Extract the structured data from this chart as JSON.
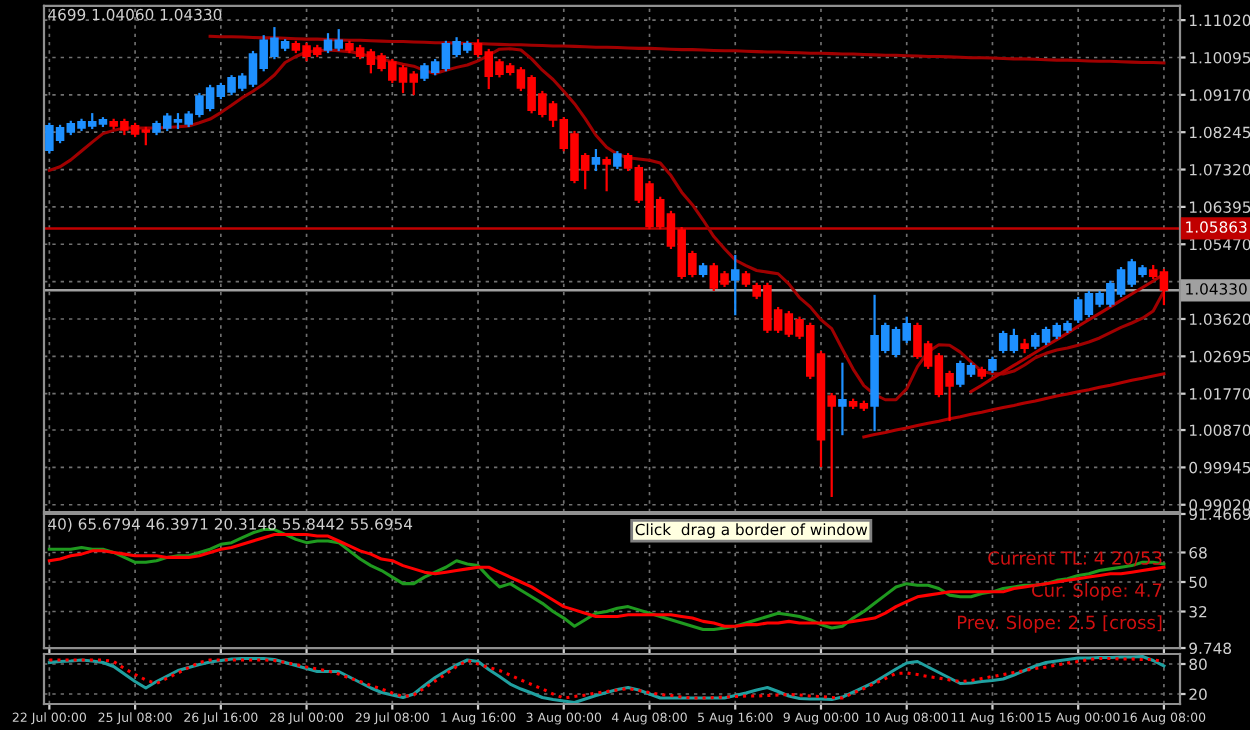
{
  "chart_data": [
    {
      "type": "candlestick",
      "categories": [
        null,
        null,
        null,
        null,
        null,
        null,
        null,
        null,
        null,
        null,
        null,
        null,
        null,
        null,
        null,
        null,
        null,
        null,
        null,
        null,
        null,
        null,
        null,
        null,
        null,
        null,
        null,
        null,
        null,
        null,
        null,
        null,
        null,
        null,
        null,
        null,
        null,
        null,
        null,
        null,
        null,
        null,
        null,
        null,
        null,
        null,
        null,
        null,
        null,
        null,
        null,
        null,
        null,
        null,
        null,
        null,
        null,
        null,
        null,
        null,
        null,
        null,
        null,
        null,
        null,
        null,
        null,
        null,
        null,
        null,
        null,
        null,
        null,
        null,
        null,
        null,
        null,
        null,
        null,
        null,
        null,
        null,
        null,
        null,
        null,
        null,
        null,
        null,
        null,
        null,
        null,
        null,
        null,
        null,
        null,
        null,
        null,
        null,
        null,
        null,
        null,
        null,
        null,
        null,
        null
      ],
      "ylim": [
        0.9884,
        1.1137
      ],
      "yticks": [
        {
          "value": 1.1102,
          "label": "1.11020"
        },
        {
          "value": 1.10095,
          "label": "1.10095"
        },
        {
          "value": 1.0917,
          "label": "1.09170"
        },
        {
          "value": 1.08245,
          "label": "1.08245"
        },
        {
          "value": 1.0732,
          "label": "1.07320"
        },
        {
          "value": 1.06395,
          "label": "1.06395"
        },
        {
          "value": 1.0547,
          "label": "1.05470"
        },
        {
          "value": 1.04545,
          "label": null
        },
        {
          "value": 1.0362,
          "label": "1.03620"
        },
        {
          "value": 1.02695,
          "label": "1.02695"
        },
        {
          "value": 1.0177,
          "label": "1.01770"
        },
        {
          "value": 1.0087,
          "label": "1.00870"
        },
        {
          "value": 0.99945,
          "label": "0.99945"
        },
        {
          "value": 0.9902,
          "label": "0.99020"
        }
      ],
      "tick_labels": "y",
      "grid": true,
      "ref_lines": [
        {
          "axis": "y",
          "value": 1.05863,
          "label": "1.05863",
          "color": "#c00000"
        },
        {
          "axis": "y",
          "value": 1.0433,
          "label": "1.04330",
          "color": "#a0a0a0"
        }
      ],
      "annotations": [
        "4699 1.04060 1.04330"
      ],
      "series": [
        {
          "type": "line",
          "color": "#a00000",
          "values": [
            1.073,
            1.0739,
            1.0756,
            1.0778,
            1.08,
            1.0821,
            1.0829,
            1.0835,
            1.0835,
            1.0835,
            1.0835,
            1.0836,
            1.0838,
            1.084,
            1.0848,
            1.0857,
            1.0873,
            1.0891,
            1.091,
            1.0926,
            1.0944,
            1.0966,
            1.0997,
            1.1012,
            1.1023,
            1.1026,
            1.1028,
            1.1026,
            1.1024,
            1.1019,
            1.1012,
            1.1005,
            1.0999,
            1.0993,
            1.0988,
            1.0977,
            1.097,
            1.0978,
            1.0985,
            1.0991,
            1.1001,
            1.1015,
            1.103,
            1.1031,
            1.1028,
            1.1006,
            1.0978,
            1.0955,
            1.0926,
            1.0895,
            1.0858,
            1.0817,
            1.0787,
            1.077,
            1.0761,
            1.0758,
            1.0755,
            1.0748,
            1.0717,
            1.0676,
            1.0645,
            1.0607,
            1.0566,
            1.0536,
            1.0508,
            1.0494,
            1.0482,
            1.0478,
            1.0474,
            1.0449,
            1.0415,
            1.0392,
            1.036,
            1.0338,
            1.0287,
            1.0238,
            1.0197,
            1.0175,
            1.0162,
            1.0162,
            1.0189,
            1.0244,
            1.0281,
            1.0298,
            1.0297,
            1.028,
            1.0256,
            1.0232,
            1.0227,
            1.0226,
            1.0233,
            1.0248,
            1.0266,
            1.0277,
            1.0285,
            1.029,
            1.0297,
            1.0305,
            1.0315,
            1.0328,
            1.0341,
            1.0352,
            1.0364,
            1.0382,
            1.0431
          ]
        },
        {
          "type": "line",
          "color": "#a00000",
          "values": [
            null,
            null,
            null,
            null,
            null,
            null,
            null,
            null,
            null,
            null,
            null,
            null,
            null,
            null,
            null,
            1.1062,
            1.1061,
            1.1061,
            1.106,
            1.1059,
            1.1058,
            1.1058,
            1.1057,
            1.1056,
            1.1055,
            1.1055,
            1.1054,
            1.1053,
            1.1052,
            1.1052,
            1.1051,
            1.105,
            1.1049,
            1.1049,
            1.1048,
            1.1047,
            1.1046,
            1.1046,
            1.1045,
            1.1044,
            1.1044,
            1.1043,
            1.1042,
            1.1041,
            1.1041,
            1.104,
            1.1039,
            1.1038,
            1.1038,
            1.1037,
            1.1036,
            1.1035,
            1.1035,
            1.1034,
            1.1033,
            1.1032,
            1.1032,
            1.1031,
            1.103,
            1.1029,
            1.1029,
            1.1028,
            1.1027,
            1.1026,
            1.1026,
            1.1025,
            1.1024,
            1.1023,
            1.1023,
            1.1022,
            1.1021,
            1.102,
            1.102,
            1.1019,
            1.1018,
            1.1018,
            1.1017,
            1.1016,
            1.1015,
            1.1015,
            1.1014,
            1.1013,
            1.1012,
            1.1012,
            1.1011,
            1.101,
            1.1009,
            1.1009,
            1.1008,
            1.1007,
            1.1006,
            1.1006,
            1.1005,
            1.1004,
            1.1003,
            1.1003,
            1.1002,
            1.1001,
            1.1,
            1.1,
            1.0999,
            1.0998,
            1.0997,
            1.0997,
            1.0996
          ]
        },
        {
          "type": "line",
          "color": "#b00000",
          "values": [
            null,
            null,
            null,
            null,
            null,
            null,
            null,
            null,
            null,
            null,
            null,
            null,
            null,
            null,
            null,
            null,
            null,
            null,
            null,
            null,
            null,
            null,
            null,
            null,
            null,
            null,
            null,
            null,
            null,
            null,
            null,
            null,
            null,
            null,
            null,
            null,
            null,
            null,
            null,
            null,
            null,
            null,
            null,
            null,
            null,
            null,
            null,
            null,
            null,
            null,
            null,
            null,
            null,
            null,
            null,
            null,
            null,
            null,
            null,
            null,
            null,
            null,
            null,
            null,
            null,
            null,
            null,
            null,
            null,
            null,
            null,
            null,
            null,
            null,
            null,
            null,
            1.007,
            1.0076,
            1.0081,
            1.0087,
            1.0092,
            1.0098,
            1.0104,
            1.0109,
            1.0115,
            1.012,
            1.0126,
            1.0131,
            1.0137,
            1.0143,
            1.0148,
            1.0154,
            1.0159,
            1.0165,
            1.0171,
            1.0176,
            1.0182,
            1.0187,
            1.0193,
            1.0198,
            1.0204,
            1.021,
            1.0215,
            1.0221,
            1.0226
          ]
        },
        {
          "type": "line",
          "color": "#b00000",
          "values": [
            null,
            null,
            null,
            null,
            null,
            null,
            null,
            null,
            null,
            null,
            null,
            null,
            null,
            null,
            null,
            null,
            null,
            null,
            null,
            null,
            null,
            null,
            null,
            null,
            null,
            null,
            null,
            null,
            null,
            null,
            null,
            null,
            null,
            null,
            null,
            null,
            null,
            null,
            null,
            null,
            null,
            null,
            null,
            null,
            null,
            null,
            null,
            null,
            null,
            null,
            null,
            null,
            null,
            null,
            null,
            null,
            null,
            null,
            null,
            null,
            null,
            null,
            null,
            null,
            null,
            null,
            null,
            null,
            null,
            null,
            null,
            null,
            null,
            null,
            null,
            null,
            null,
            null,
            null,
            null,
            null,
            null,
            null,
            null,
            null,
            null,
            1.0182,
            1.0198,
            1.0215,
            1.0231,
            1.0247,
            1.0263,
            1.0279,
            1.0295,
            1.0311,
            1.0327,
            1.0344,
            1.036,
            1.0376,
            1.0392,
            1.0408,
            1.0424,
            1.044,
            1.0456,
            1.0473
          ]
        },
        {
          "type": "candlestick",
          "colors": [
            "#1e90ff",
            "#1e90ff",
            "#1e90ff",
            "#1e90ff",
            "#1e90ff",
            "#1e90ff",
            "#ff0000",
            "#ff0000",
            "#ff0000",
            "#ff0000",
            "#1e90ff",
            "#1e90ff",
            "#1e90ff",
            "#1e90ff",
            "#1e90ff",
            "#1e90ff",
            "#1e90ff",
            "#1e90ff",
            "#1e90ff",
            "#1e90ff",
            "#1e90ff",
            "#1e90ff",
            "#1e90ff",
            "#ff0000",
            "#ff0000",
            "#ff0000",
            "#1e90ff",
            "#1e90ff",
            "#ff0000",
            "#ff0000",
            "#ff0000",
            "#ff0000",
            "#ff0000",
            "#ff0000",
            "#ff0000",
            "#1e90ff",
            "#1e90ff",
            "#1e90ff",
            "#1e90ff",
            "#1e90ff",
            "#ff0000",
            "#ff0000",
            "#ff0000",
            "#ff0000",
            "#ff0000",
            "#ff0000",
            "#ff0000",
            "#ff0000",
            "#ff0000",
            "#ff0000",
            "#ff0000",
            "#1e90ff",
            "#ff0000",
            "#1e90ff",
            "#ff0000",
            "#ff0000",
            "#ff0000",
            "#ff0000",
            "#ff0000",
            "#ff0000",
            "#ff0000",
            "#1e90ff",
            "#ff0000",
            "#ff0000",
            "#1e90ff",
            "#ff0000",
            "#ff0000",
            "#ff0000",
            "#ff0000",
            "#ff0000",
            "#ff0000",
            "#ff0000",
            "#ff0000",
            "#ff0000",
            "#1e90ff",
            "#ff0000",
            "#ff0000",
            "#1e90ff",
            "#1e90ff",
            "#1e90ff",
            "#1e90ff",
            "#ff0000",
            "#ff0000",
            "#ff0000",
            "#ff0000",
            "#1e90ff",
            "#1e90ff",
            "#ff0000",
            "#1e90ff",
            "#1e90ff",
            "#1e90ff",
            "#ff0000",
            "#1e90ff",
            "#1e90ff",
            "#1e90ff",
            "#1e90ff",
            "#1e90ff",
            "#1e90ff",
            "#1e90ff",
            "#1e90ff",
            "#1e90ff",
            "#1e90ff",
            "#1e90ff",
            "#ff0000",
            "#ff0000"
          ],
          "ohlc": [
            [
              1.078,
              1.0845,
              1.0775,
              1.084
            ],
            [
              1.0805,
              1.084,
              1.08,
              1.0835
            ],
            [
              1.0825,
              1.085,
              1.082,
              1.0845
            ],
            [
              1.0835,
              1.0855,
              1.083,
              1.085
            ],
            [
              1.084,
              1.0869,
              1.0835,
              1.085
            ],
            [
              1.0845,
              1.0859,
              1.084,
              1.0855
            ],
            [
              1.085,
              1.0855,
              1.0835,
              1.084
            ],
            [
              1.085,
              1.0855,
              1.082,
              1.083
            ],
            [
              1.084,
              1.0845,
              1.0815,
              1.082
            ],
            [
              1.083,
              1.0835,
              1.0795,
              1.0825
            ],
            [
              1.0825,
              1.085,
              1.082,
              1.0845
            ],
            [
              1.0835,
              1.0869,
              1.083,
              1.0864
            ],
            [
              1.085,
              1.0869,
              1.0835,
              1.0855
            ],
            [
              1.0845,
              1.0874,
              1.084,
              1.0869
            ],
            [
              1.0869,
              1.0919,
              1.0864,
              1.0914
            ],
            [
              1.0884,
              1.0939,
              1.0879,
              1.0934
            ],
            [
              1.0914,
              1.0944,
              1.0909,
              1.0939
            ],
            [
              1.0924,
              1.0963,
              1.0919,
              1.0959
            ],
            [
              1.0934,
              1.0968,
              1.0929,
              1.0963
            ],
            [
              1.0944,
              1.1023,
              1.0939,
              1.1018
            ],
            [
              1.0983,
              1.1062,
              1.0978,
              1.1052
            ],
            [
              1.1013,
              1.1082,
              1.1008,
              1.1057
            ],
            [
              1.1033,
              1.1052,
              1.1028,
              1.1048
            ],
            [
              1.1043,
              1.1048,
              1.1023,
              1.1028
            ],
            [
              1.1038,
              1.1043,
              1.1003,
              1.1013
            ],
            [
              1.1033,
              1.1038,
              1.1013,
              1.1018
            ],
            [
              1.1028,
              1.1067,
              1.1023,
              1.1052
            ],
            [
              1.1033,
              1.1077,
              1.1028,
              1.1052
            ],
            [
              1.1043,
              1.1048,
              1.1023,
              1.1028
            ],
            [
              1.1033,
              1.1038,
              1.1008,
              1.1013
            ],
            [
              1.1023,
              1.1028,
              1.0973,
              1.0993
            ],
            [
              1.1013,
              1.1018,
              1.0978,
              1.0983
            ],
            [
              1.0998,
              1.1003,
              1.0949,
              1.0954
            ],
            [
              1.0983,
              1.0988,
              1.0924,
              1.0949
            ],
            [
              1.0968,
              1.0973,
              1.0919,
              1.0949
            ],
            [
              1.0959,
              1.0993,
              1.0954,
              1.0988
            ],
            [
              1.0973,
              1.1003,
              1.0968,
              1.0998
            ],
            [
              1.0983,
              1.1048,
              1.0978,
              1.1043
            ],
            [
              1.1018,
              1.1057,
              1.1013,
              1.1048
            ],
            [
              1.1028,
              1.1048,
              1.1023,
              1.1043
            ],
            [
              1.1043,
              1.1052,
              1.1013,
              1.1018
            ],
            [
              1.1023,
              1.1028,
              1.0934,
              1.0963
            ],
            [
              1.0998,
              1.1003,
              1.0963,
              1.0968
            ],
            [
              1.0988,
              1.0993,
              1.0968,
              1.0973
            ],
            [
              1.0978,
              1.0983,
              1.0929,
              1.0934
            ],
            [
              1.0959,
              1.0963,
              1.0874,
              1.0879
            ],
            [
              1.0919,
              1.0924,
              1.0864,
              1.0869
            ],
            [
              1.0894,
              1.0899,
              1.084,
              1.0855
            ],
            [
              1.0855,
              1.0859,
              1.078,
              1.0785
            ],
            [
              1.082,
              1.0825,
              1.0701,
              1.0706
            ],
            [
              1.0766,
              1.077,
              1.0686,
              1.0731
            ],
            [
              1.0746,
              1.078,
              1.0731,
              1.0761
            ],
            [
              1.0756,
              1.0761,
              1.0681,
              1.0746
            ],
            [
              1.0741,
              1.0775,
              1.0736,
              1.077
            ],
            [
              1.0766,
              1.077,
              1.0731,
              1.0736
            ],
            [
              1.0736,
              1.0741,
              1.0652,
              1.0657
            ],
            [
              1.0696,
              1.0701,
              1.0587,
              1.0592
            ],
            [
              1.0657,
              1.0662,
              1.0587,
              1.0592
            ],
            [
              1.0622,
              1.0627,
              1.0538,
              1.0543
            ],
            [
              1.0582,
              1.0587,
              1.0464,
              1.0468
            ],
            [
              1.0523,
              1.0528,
              1.0468,
              1.0473
            ],
            [
              1.0473,
              1.0498,
              1.0468,
              1.0493
            ],
            [
              1.0493,
              1.0498,
              1.0434,
              1.0439
            ],
            [
              1.0473,
              1.0478,
              1.0444,
              1.0449
            ],
            [
              1.0459,
              1.0518,
              1.0374,
              1.0483
            ],
            [
              1.0473,
              1.0478,
              1.0444,
              1.0449
            ],
            [
              1.0444,
              1.0449,
              1.0414,
              1.0419
            ],
            [
              1.0444,
              1.0449,
              1.033,
              1.0335
            ],
            [
              1.0384,
              1.0389,
              1.033,
              1.0335
            ],
            [
              1.0374,
              1.0379,
              1.032,
              1.0325
            ],
            [
              1.036,
              1.0365,
              1.0315,
              1.032
            ],
            [
              1.0345,
              1.035,
              1.0216,
              1.0221
            ],
            [
              1.0275,
              1.028,
              0.9998,
              1.0063
            ],
            [
              1.0171,
              1.0176,
              0.9924,
              1.0147
            ],
            [
              1.0147,
              1.0251,
              1.0077,
              1.0162
            ],
            [
              1.0157,
              1.0162,
              1.0142,
              1.0147
            ],
            [
              1.0152,
              1.0157,
              1.0137,
              1.0142
            ],
            [
              1.0147,
              1.0419,
              1.0087,
              1.032
            ],
            [
              1.0285,
              1.035,
              1.028,
              1.0345
            ],
            [
              1.0275,
              1.034,
              1.027,
              1.0335
            ],
            [
              1.031,
              1.0365,
              1.0305,
              1.035
            ],
            [
              1.0345,
              1.035,
              1.0266,
              1.027
            ],
            [
              1.03,
              1.0305,
              1.0241,
              1.0246
            ],
            [
              1.027,
              1.0275,
              1.0171,
              1.0176
            ],
            [
              1.0226,
              1.0231,
              1.0112,
              1.0196
            ],
            [
              1.0201,
              1.0256,
              1.0196,
              1.0251
            ],
            [
              1.0226,
              1.0251,
              1.0221,
              1.0246
            ],
            [
              1.0236,
              1.0241,
              1.0216,
              1.0221
            ],
            [
              1.0236,
              1.0266,
              1.0231,
              1.0261
            ],
            [
              1.0285,
              1.033,
              1.028,
              1.0325
            ],
            [
              1.0285,
              1.0335,
              1.028,
              1.032
            ],
            [
              1.03,
              1.031,
              1.028,
              1.029
            ],
            [
              1.0295,
              1.0325,
              1.029,
              1.032
            ],
            [
              1.0305,
              1.034,
              1.03,
              1.0335
            ],
            [
              1.032,
              1.035,
              1.0315,
              1.0345
            ],
            [
              1.0335,
              1.0355,
              1.033,
              1.035
            ],
            [
              1.036,
              1.0414,
              1.0355,
              1.0409
            ],
            [
              1.0374,
              1.0429,
              1.0369,
              1.0424
            ],
            [
              1.0399,
              1.0429,
              1.0394,
              1.0424
            ],
            [
              1.0399,
              1.0454,
              1.0394,
              1.0449
            ],
            [
              1.0424,
              1.0488,
              1.0419,
              1.0483
            ],
            [
              1.0449,
              1.0508,
              1.0444,
              1.0503
            ],
            [
              1.0473,
              1.0493,
              1.0468,
              1.0488
            ],
            [
              1.0483,
              1.0493,
              1.0464,
              1.0468
            ],
            [
              1.0478,
              1.0483,
              1.0399,
              1.0434
            ]
          ]
        }
      ]
    },
    {
      "type": "line",
      "categories": [
        null,
        null,
        null,
        null,
        null,
        null,
        null,
        null,
        null,
        null,
        null,
        null,
        null,
        null,
        null,
        null,
        null,
        null,
        null,
        null,
        null,
        null,
        null,
        null,
        null,
        null,
        null,
        null,
        null,
        null,
        null,
        null,
        null,
        null,
        null,
        null,
        null,
        null,
        null,
        null,
        null,
        null,
        null,
        null,
        null,
        null,
        null,
        null,
        null,
        null,
        null,
        null,
        null,
        null,
        null,
        null,
        null,
        null,
        null,
        null,
        null,
        null,
        null,
        null,
        null,
        null,
        null,
        null,
        null,
        null,
        null,
        null,
        null,
        null,
        null,
        null,
        null,
        null,
        null,
        null,
        null,
        null,
        null,
        null,
        null,
        null,
        null,
        null,
        null,
        null,
        null,
        null,
        null,
        null,
        null,
        null,
        null,
        null,
        null,
        null,
        null,
        null,
        null,
        null,
        null
      ],
      "ylim": [
        9.748,
        91.4669
      ],
      "yticks": [
        {
          "value": 9.748,
          "label": "9.748"
        },
        32,
        50,
        68,
        {
          "value": 91.4669,
          "label": "91.4669"
        }
      ],
      "tick_labels": "y",
      "grid": true,
      "annotations": [
        "40) 65.6794 46.3971 20.3148 55.8442 55.6954",
        "Click  drag a border of window",
        "Current TL: 4 20/53",
        "Cur. Slope: 4.7",
        "Prev. Slope: 2.5 [cross]"
      ],
      "series": [
        {
          "color": "#1f9a1f",
          "values": [
            70,
            70,
            70,
            71,
            70,
            70,
            68,
            65,
            62,
            62,
            63,
            65,
            66,
            66,
            68,
            70,
            73,
            74,
            77,
            80,
            82,
            82,
            79,
            76,
            74,
            75,
            75,
            74,
            69,
            64,
            60,
            57,
            53,
            49,
            49,
            53,
            56,
            59,
            63,
            61,
            60,
            53,
            47,
            49,
            45,
            41,
            37,
            32,
            28,
            23,
            27,
            31,
            32,
            34,
            35,
            33,
            31,
            29,
            27,
            25,
            23,
            21,
            21,
            22,
            23,
            25,
            27,
            29,
            31,
            30,
            29,
            27,
            24,
            22,
            23,
            28,
            32,
            37,
            42,
            47,
            49,
            48,
            48,
            46,
            42,
            41,
            41,
            43,
            44,
            46,
            47,
            48,
            48,
            49,
            51,
            52,
            54,
            55,
            57,
            58,
            59,
            60,
            62,
            62,
            61
          ]
        },
        {
          "color": "#ff0000",
          "values": [
            63,
            64,
            66,
            67,
            69,
            69,
            68,
            67,
            66,
            66,
            66,
            65,
            65,
            65,
            66,
            68,
            70,
            71,
            73,
            75,
            77,
            79,
            79,
            79,
            79,
            78,
            78,
            75,
            72,
            69,
            67,
            64,
            63,
            60,
            58,
            56,
            55,
            56,
            57,
            58,
            59,
            59,
            56,
            53,
            50,
            47,
            43,
            39,
            35,
            33,
            31,
            29,
            29,
            29,
            30,
            30,
            30,
            30,
            30,
            29,
            28,
            26,
            25,
            23,
            23,
            24,
            24,
            25,
            25,
            26,
            25,
            25,
            25,
            25,
            25,
            26,
            27,
            28,
            31,
            35,
            38,
            41,
            42,
            43,
            44,
            44,
            44,
            44,
            44,
            44,
            46,
            47,
            48,
            49,
            50,
            51,
            52,
            53,
            54,
            55,
            55,
            56,
            57,
            58,
            59
          ]
        }
      ]
    },
    {
      "type": "line",
      "categories": [
        "22 Jul 00:00",
        null,
        null,
        null,
        null,
        null,
        null,
        null,
        "25 Jul 08:00",
        null,
        null,
        null,
        null,
        null,
        null,
        null,
        "26 Jul 16:00",
        null,
        null,
        null,
        null,
        null,
        null,
        null,
        "28 Jul 00:00",
        null,
        null,
        null,
        null,
        null,
        null,
        null,
        "29 Jul 08:00",
        null,
        null,
        null,
        null,
        null,
        null,
        null,
        "1 Aug 16:00",
        null,
        null,
        null,
        null,
        null,
        null,
        null,
        "3 Aug 00:00",
        null,
        null,
        null,
        null,
        null,
        null,
        null,
        "4 Aug 08:00",
        null,
        null,
        null,
        null,
        null,
        null,
        null,
        "5 Aug 16:00",
        null,
        null,
        null,
        null,
        null,
        null,
        null,
        "9 Aug 00:00",
        null,
        null,
        null,
        null,
        null,
        null,
        null,
        "10 Aug 08:00",
        null,
        null,
        null,
        null,
        null,
        null,
        null,
        "11 Aug 16:00",
        null,
        null,
        null,
        null,
        null,
        null,
        null,
        "15 Aug 00:00",
        null,
        null,
        null,
        null,
        null,
        null,
        null,
        "16 Aug 08:00"
      ],
      "ylim": [
        0,
        100
      ],
      "yticks": [
        20,
        80
      ],
      "grid": true,
      "series": [
        {
          "color": "#20a0a0",
          "values": [
            83,
            85,
            86,
            88,
            86,
            83,
            75,
            60,
            45,
            32,
            45,
            56,
            67,
            73,
            79,
            84,
            87,
            90,
            91,
            91,
            91,
            89,
            83,
            77,
            71,
            65,
            65,
            65,
            54,
            43,
            32,
            23,
            18,
            13,
            20,
            37,
            53,
            66,
            78,
            88,
            85,
            69,
            55,
            40,
            30,
            22,
            13,
            9,
            6,
            3,
            10,
            17,
            23,
            29,
            33,
            28,
            20,
            12,
            12,
            12,
            12,
            12,
            12,
            12,
            17,
            22,
            28,
            33,
            25,
            16,
            11,
            10,
            10,
            9,
            14,
            24,
            34,
            44,
            57,
            70,
            82,
            85,
            74,
            63,
            52,
            41,
            42,
            45,
            47,
            50,
            58,
            67,
            76,
            83,
            86,
            89,
            92,
            92,
            93,
            93,
            94,
            94,
            95,
            87,
            76
          ]
        },
        {
          "color": "#ff0000",
          "line_style": "dotted",
          "values": [
            88,
            88,
            88,
            88,
            88,
            88,
            85,
            71,
            59,
            48,
            41,
            52,
            62,
            73,
            83,
            88,
            88,
            88,
            88,
            88,
            88,
            87,
            83,
            79,
            74,
            70,
            66,
            60,
            52,
            45,
            37,
            30,
            22,
            15,
            18,
            32,
            46,
            60,
            75,
            87,
            80,
            73,
            67,
            58,
            48,
            39,
            30,
            20,
            12,
            15,
            18,
            22,
            25,
            28,
            31,
            27,
            23,
            19,
            17,
            14,
            12,
            12,
            13,
            14,
            15,
            16,
            16,
            17,
            18,
            19,
            18,
            16,
            15,
            13,
            12,
            22,
            31,
            41,
            51,
            61,
            62,
            59,
            55,
            52,
            48,
            45,
            47,
            51,
            55,
            59,
            63,
            67,
            71,
            74,
            78,
            82,
            85,
            89,
            91,
            91,
            90,
            90,
            89,
            89,
            84
          ]
        }
      ]
    }
  ]
}
